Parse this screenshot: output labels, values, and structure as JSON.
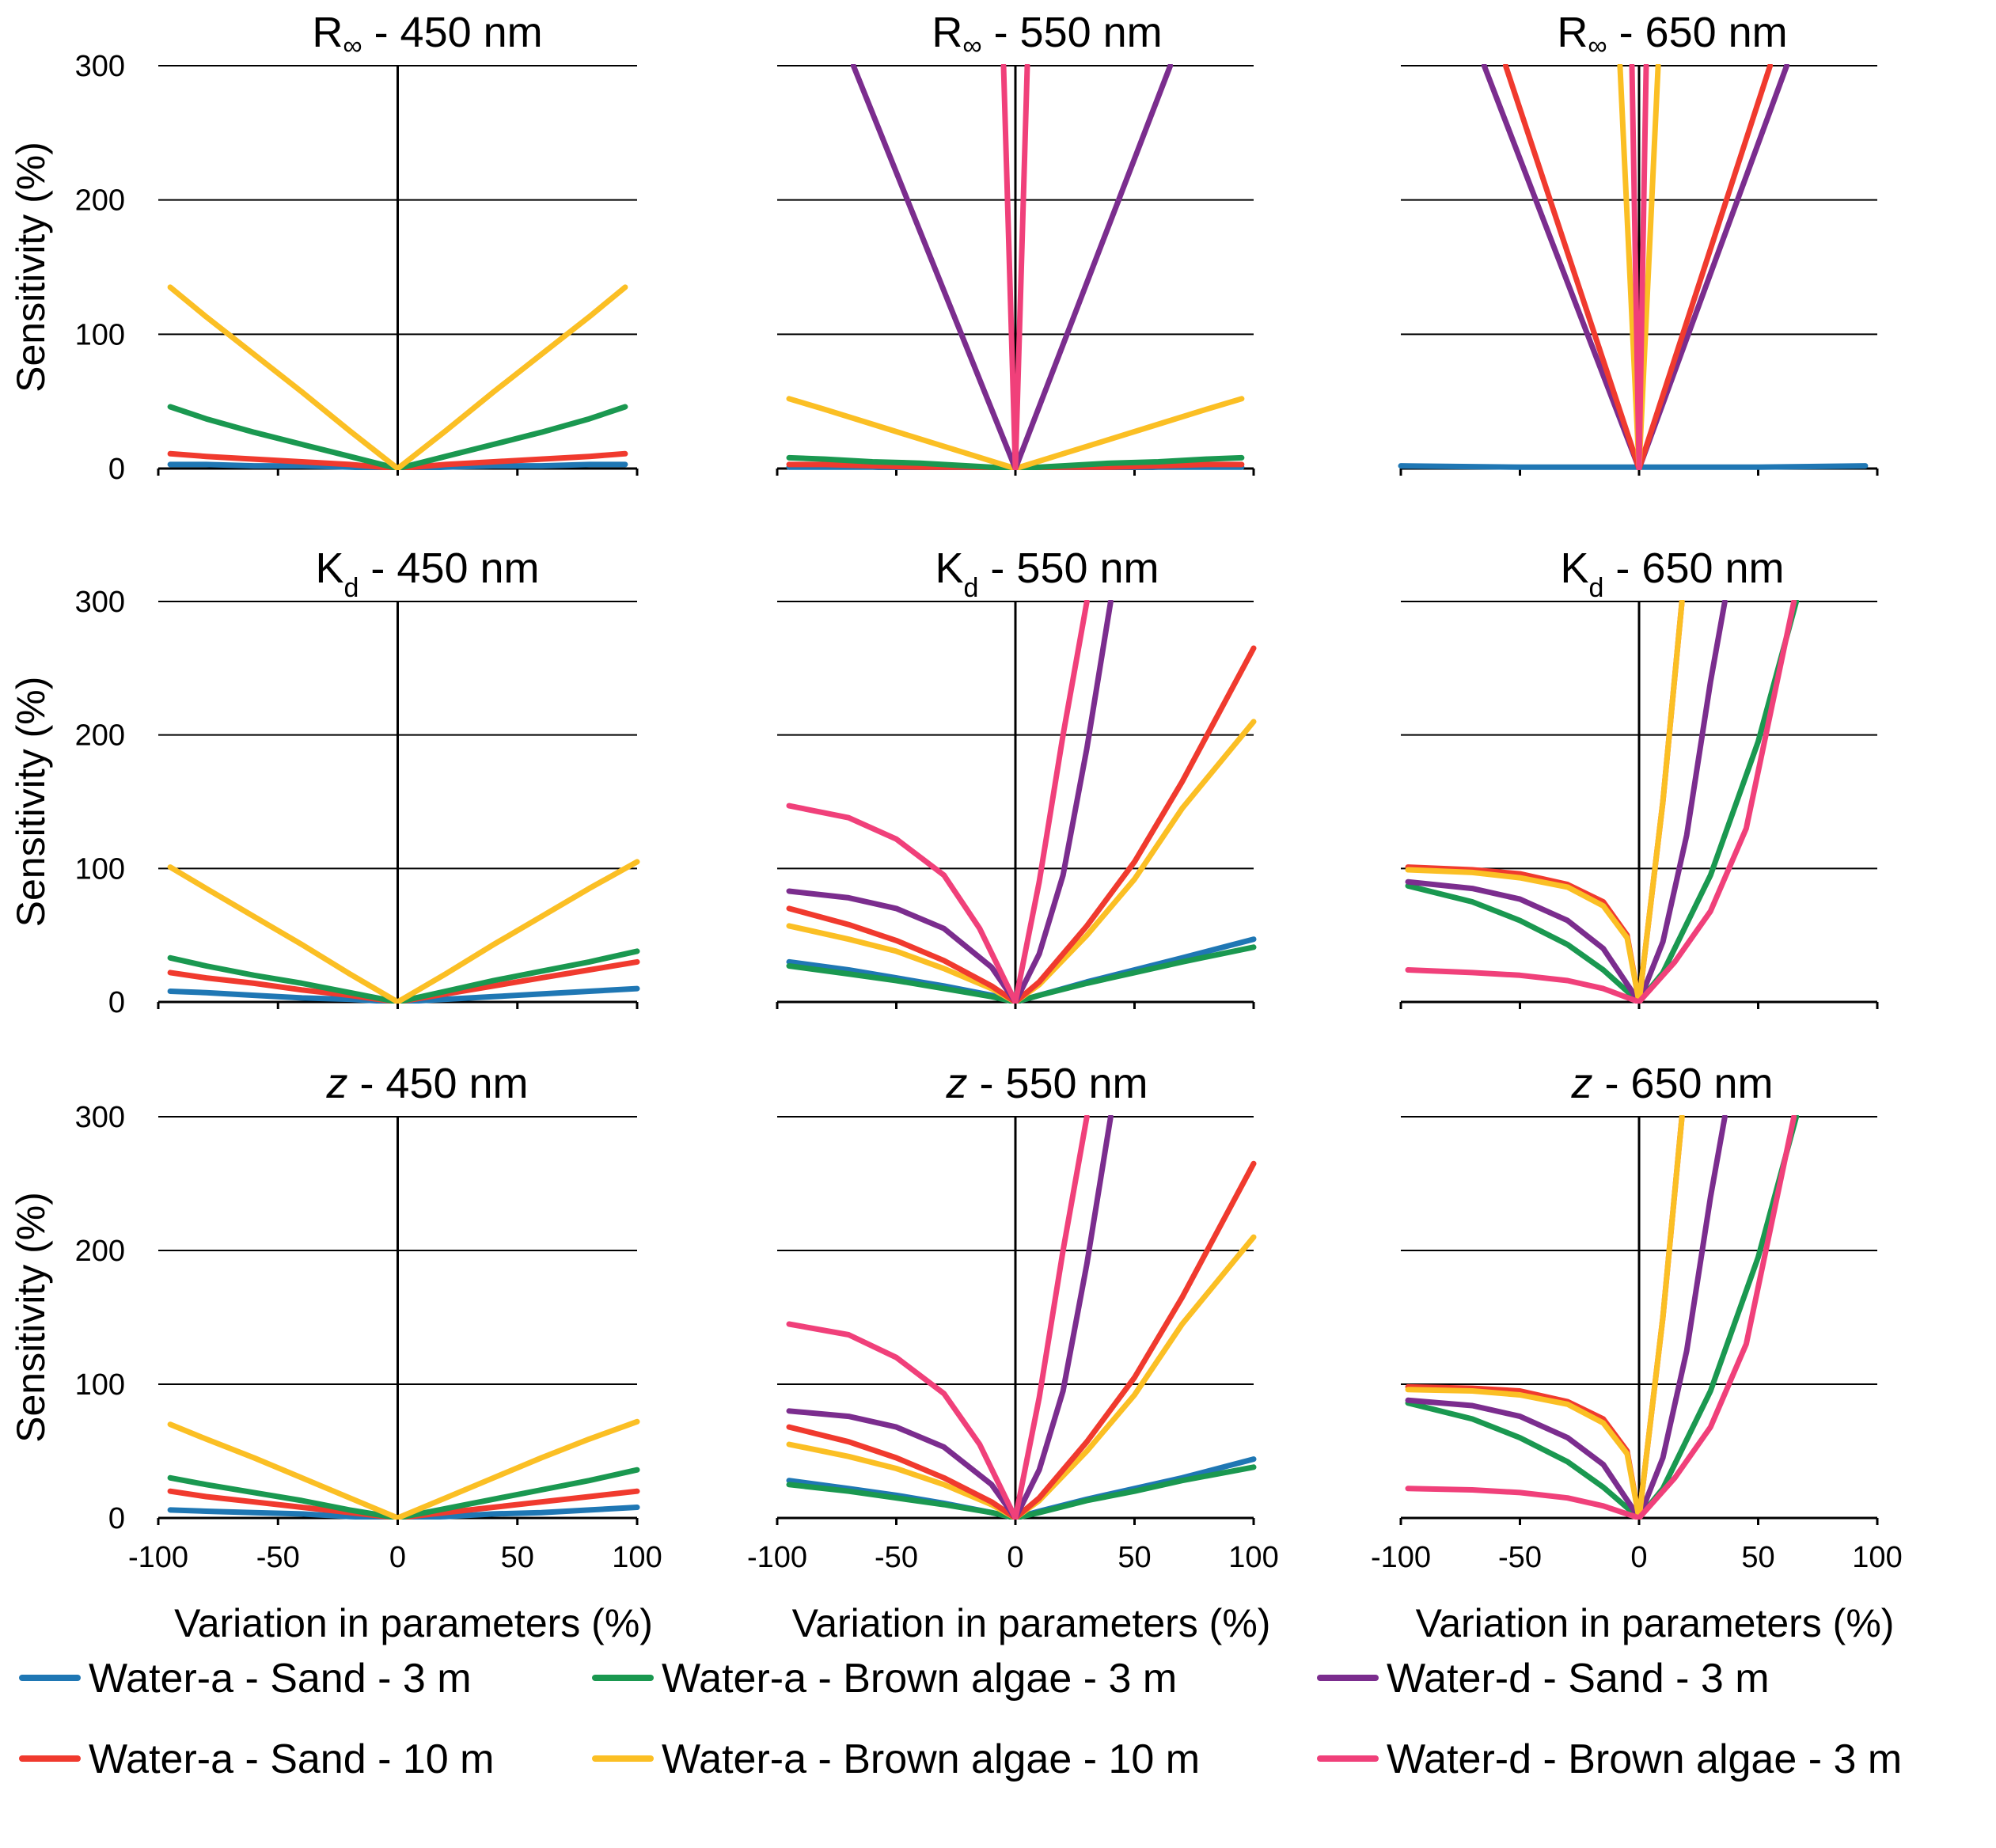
{
  "figure": {
    "x_axis_label": "Variation in parameters (%)",
    "y_axis_label": "Sensitivity (%)",
    "x_ticks": [
      "-100",
      "-50",
      "0",
      "50",
      "100"
    ],
    "y_ticks": [
      "0",
      "100",
      "200",
      "300"
    ]
  },
  "legend": [
    {
      "key": "wa_sand_3",
      "label": "Water-a - Sand - 3 m",
      "color": "#1f77b4"
    },
    {
      "key": "wa_brown_3",
      "label": "Water-a - Brown algae - 3 m",
      "color": "#1a9850"
    },
    {
      "key": "wd_sand_3",
      "label": "Water-d - Sand - 3 m",
      "color": "#7b2d8e"
    },
    {
      "key": "wa_sand_10",
      "label": "Water-a - Sand - 10 m",
      "color": "#f03a2e"
    },
    {
      "key": "wa_brown_10",
      "label": "Water-a - Brown algae - 10 m",
      "color": "#fbbf24"
    },
    {
      "key": "wd_brown_3",
      "label": "Water-d - Brown algae - 3 m",
      "color": "#f0407a"
    }
  ],
  "chart_data": [
    {
      "type": "line",
      "title_main": "R",
      "title_sub": "∞",
      "title_rest": " - 450 nm",
      "xlim": [
        -100,
        100
      ],
      "ylim": [
        0,
        300
      ],
      "x": [
        -95,
        -80,
        -60,
        -40,
        -20,
        0,
        20,
        40,
        60,
        80,
        95
      ],
      "series": [
        {
          "key": "wa_sand_3",
          "values": [
            3,
            3,
            2,
            2,
            1,
            0,
            1,
            2,
            2,
            3,
            3
          ]
        },
        {
          "key": "wa_sand_10",
          "values": [
            11,
            9,
            7,
            5,
            3,
            0,
            3,
            5,
            7,
            9,
            11
          ]
        },
        {
          "key": "wa_brown_3",
          "values": [
            46,
            37,
            27,
            18,
            9,
            0,
            9,
            18,
            27,
            37,
            46
          ]
        },
        {
          "key": "wa_brown_10",
          "values": [
            135,
            113,
            85,
            57,
            28,
            0,
            28,
            57,
            85,
            113,
            135
          ]
        }
      ]
    },
    {
      "type": "line",
      "title_main": "R",
      "title_sub": "∞",
      "title_rest": " - 550 nm",
      "xlim": [
        -100,
        100
      ],
      "ylim": [
        0,
        300
      ],
      "x": [
        -95,
        -80,
        -60,
        -40,
        -20,
        0,
        20,
        40,
        60,
        80,
        95
      ],
      "series": [
        {
          "key": "wa_sand_3",
          "values": [
            1,
            1,
            1,
            0,
            0,
            0,
            0,
            0,
            1,
            1,
            1
          ]
        },
        {
          "key": "wa_sand_10",
          "values": [
            3,
            3,
            2,
            1,
            1,
            0,
            1,
            1,
            2,
            3,
            3
          ]
        },
        {
          "key": "wa_brown_3",
          "values": [
            8,
            7,
            5,
            4,
            2,
            0,
            2,
            4,
            5,
            7,
            8
          ]
        },
        {
          "key": "wa_brown_10",
          "values": [
            52,
            44,
            33,
            22,
            11,
            0,
            11,
            22,
            33,
            44,
            52
          ]
        },
        {
          "key": "wd_sand_3",
          "x": [
            -68,
            0,
            65
          ],
          "values": [
            300,
            0,
            300
          ]
        },
        {
          "key": "wd_brown_3",
          "x": [
            -5,
            0,
            5
          ],
          "values": [
            300,
            0,
            300
          ]
        }
      ]
    },
    {
      "type": "line",
      "title_main": "R",
      "title_sub": "∞",
      "title_rest": " - 650 nm",
      "xlim": [
        -100,
        100
      ],
      "ylim": [
        0,
        300
      ],
      "x": [
        -100,
        -50,
        0,
        50,
        95
      ],
      "series": [
        {
          "key": "wa_sand_3",
          "values": [
            2,
            1,
            1,
            1,
            2
          ]
        },
        {
          "key": "wd_sand_3",
          "x": [
            -65,
            0,
            62
          ],
          "values": [
            300,
            0,
            300
          ]
        },
        {
          "key": "wa_sand_10",
          "x": [
            -56,
            0,
            55
          ],
          "values": [
            300,
            0,
            300
          ]
        },
        {
          "key": "wa_brown_10",
          "x": [
            -8,
            0,
            8
          ],
          "values": [
            300,
            0,
            300
          ]
        },
        {
          "key": "wd_brown_3",
          "x": [
            -3,
            0,
            3
          ],
          "values": [
            300,
            0,
            300
          ]
        }
      ]
    },
    {
      "type": "line",
      "title_main": "K",
      "title_sub": "d",
      "title_rest": " - 450 nm",
      "xlim": [
        -100,
        100
      ],
      "ylim": [
        0,
        300
      ],
      "x": [
        -95,
        -80,
        -60,
        -40,
        -20,
        0,
        20,
        40,
        60,
        80,
        100
      ],
      "series": [
        {
          "key": "wa_sand_3",
          "values": [
            8,
            7,
            5,
            3,
            2,
            0,
            2,
            4,
            6,
            8,
            10
          ]
        },
        {
          "key": "wa_sand_10",
          "values": [
            22,
            18,
            14,
            9,
            5,
            0,
            6,
            12,
            18,
            24,
            30
          ]
        },
        {
          "key": "wa_brown_3",
          "values": [
            33,
            27,
            20,
            14,
            7,
            0,
            8,
            16,
            23,
            30,
            38
          ]
        },
        {
          "key": "wa_brown_10",
          "values": [
            101,
            85,
            64,
            43,
            21,
            0,
            21,
            43,
            64,
            85,
            105
          ]
        }
      ]
    },
    {
      "type": "line",
      "title_main": "K",
      "title_sub": "d",
      "title_rest": " - 550 nm",
      "xlim": [
        -100,
        100
      ],
      "ylim": [
        0,
        300
      ],
      "series": [
        {
          "key": "wa_sand_3",
          "x": [
            -95,
            -70,
            -50,
            -30,
            -10,
            0,
            10,
            30,
            50,
            70,
            100
          ],
          "values": [
            30,
            24,
            18,
            12,
            5,
            0,
            5,
            15,
            24,
            33,
            47
          ]
        },
        {
          "key": "wa_brown_3",
          "x": [
            -95,
            -70,
            -50,
            -30,
            -10,
            0,
            10,
            30,
            50,
            70,
            100
          ],
          "values": [
            27,
            21,
            16,
            10,
            4,
            0,
            5,
            14,
            22,
            30,
            41
          ]
        },
        {
          "key": "wa_brown_10",
          "x": [
            -95,
            -70,
            -50,
            -30,
            -10,
            0,
            10,
            30,
            50,
            70,
            100
          ],
          "values": [
            57,
            47,
            38,
            25,
            10,
            0,
            13,
            50,
            92,
            145,
            210
          ]
        },
        {
          "key": "wa_sand_10",
          "x": [
            -95,
            -70,
            -50,
            -30,
            -10,
            0,
            10,
            30,
            50,
            70,
            100
          ],
          "values": [
            70,
            58,
            46,
            31,
            12,
            0,
            15,
            57,
            105,
            165,
            265
          ]
        },
        {
          "key": "wd_sand_3",
          "x": [
            -95,
            -70,
            -50,
            -30,
            -10,
            0,
            10,
            20,
            30,
            40
          ],
          "values": [
            83,
            78,
            70,
            55,
            26,
            0,
            36,
            95,
            190,
            300
          ]
        },
        {
          "key": "wd_brown_3",
          "x": [
            -95,
            -70,
            -50,
            -30,
            -15,
            0,
            10,
            20,
            30
          ],
          "values": [
            147,
            138,
            122,
            95,
            55,
            0,
            90,
            200,
            300
          ]
        }
      ]
    },
    {
      "type": "line",
      "title_main": "K",
      "title_sub": "d",
      "title_rest": " - 650 nm",
      "xlim": [
        -100,
        100
      ],
      "ylim": [
        0,
        300
      ],
      "series": [
        {
          "key": "wa_brown_3",
          "x": [
            -97,
            -70,
            -50,
            -30,
            -15,
            0,
            10,
            30,
            50,
            66
          ],
          "values": [
            87,
            75,
            61,
            43,
            24,
            0,
            22,
            95,
            195,
            300
          ]
        },
        {
          "key": "wd_sand_3",
          "x": [
            -97,
            -70,
            -50,
            -30,
            -15,
            0,
            10,
            20,
            30,
            36
          ],
          "values": [
            90,
            85,
            77,
            61,
            40,
            0,
            45,
            125,
            240,
            300
          ]
        },
        {
          "key": "wa_sand_10",
          "x": [
            -97,
            -70,
            -50,
            -30,
            -15,
            -5,
            0,
            10,
            18
          ],
          "values": [
            101,
            99,
            96,
            88,
            75,
            50,
            0,
            150,
            300
          ]
        },
        {
          "key": "wa_brown_10",
          "x": [
            -97,
            -70,
            -50,
            -30,
            -15,
            -5,
            0,
            10,
            18
          ],
          "values": [
            99,
            97,
            93,
            86,
            72,
            48,
            0,
            150,
            300
          ]
        },
        {
          "key": "wd_brown_3",
          "x": [
            -97,
            -70,
            -50,
            -30,
            -15,
            0,
            15,
            30,
            45,
            65
          ],
          "values": [
            24,
            22,
            20,
            16,
            10,
            0,
            30,
            68,
            130,
            300
          ]
        }
      ]
    },
    {
      "type": "line",
      "title_main": "z",
      "title_sub": "",
      "title_rest": " - 450 nm",
      "xlim": [
        -100,
        100
      ],
      "ylim": [
        0,
        300
      ],
      "x": [
        -95,
        -80,
        -60,
        -40,
        -20,
        0,
        20,
        40,
        60,
        80,
        100
      ],
      "series": [
        {
          "key": "wa_sand_3",
          "values": [
            6,
            5,
            4,
            3,
            1,
            0,
            1,
            3,
            4,
            6,
            8
          ]
        },
        {
          "key": "wa_sand_10",
          "values": [
            20,
            16,
            12,
            8,
            4,
            0,
            4,
            8,
            12,
            16,
            20
          ]
        },
        {
          "key": "wa_brown_3",
          "values": [
            30,
            25,
            19,
            13,
            6,
            0,
            7,
            14,
            21,
            28,
            36
          ]
        },
        {
          "key": "wa_brown_10",
          "values": [
            70,
            59,
            45,
            30,
            15,
            0,
            15,
            30,
            45,
            59,
            72
          ]
        }
      ]
    },
    {
      "type": "line",
      "title_main": "z",
      "title_sub": "",
      "title_rest": " - 550 nm",
      "xlim": [
        -100,
        100
      ],
      "ylim": [
        0,
        300
      ],
      "series": [
        {
          "key": "wa_sand_3",
          "x": [
            -95,
            -70,
            -50,
            -30,
            -10,
            0,
            10,
            30,
            50,
            70,
            100
          ],
          "values": [
            28,
            22,
            17,
            11,
            4,
            0,
            5,
            14,
            22,
            30,
            44
          ]
        },
        {
          "key": "wa_brown_3",
          "x": [
            -95,
            -70,
            -50,
            -30,
            -10,
            0,
            10,
            30,
            50,
            70,
            100
          ],
          "values": [
            25,
            20,
            15,
            10,
            4,
            0,
            4,
            13,
            20,
            28,
            38
          ]
        },
        {
          "key": "wa_brown_10",
          "x": [
            -95,
            -70,
            -50,
            -30,
            -10,
            0,
            10,
            30,
            50,
            70,
            100
          ],
          "values": [
            55,
            46,
            37,
            25,
            10,
            0,
            13,
            50,
            92,
            145,
            210
          ]
        },
        {
          "key": "wa_sand_10",
          "x": [
            -95,
            -70,
            -50,
            -30,
            -10,
            0,
            10,
            30,
            50,
            70,
            100
          ],
          "values": [
            68,
            57,
            45,
            30,
            12,
            0,
            15,
            57,
            105,
            165,
            265
          ]
        },
        {
          "key": "wd_sand_3",
          "x": [
            -95,
            -70,
            -50,
            -30,
            -10,
            0,
            10,
            20,
            30,
            40
          ],
          "values": [
            80,
            76,
            68,
            53,
            25,
            0,
            36,
            95,
            190,
            300
          ]
        },
        {
          "key": "wd_brown_3",
          "x": [
            -95,
            -70,
            -50,
            -30,
            -15,
            0,
            10,
            20,
            30
          ],
          "values": [
            145,
            137,
            120,
            93,
            55,
            0,
            90,
            200,
            300
          ]
        }
      ]
    },
    {
      "type": "line",
      "title_main": "z",
      "title_sub": "",
      "title_rest": " - 650 nm",
      "xlim": [
        -100,
        100
      ],
      "ylim": [
        0,
        300
      ],
      "series": [
        {
          "key": "wa_brown_3",
          "x": [
            -97,
            -70,
            -50,
            -30,
            -15,
            0,
            10,
            30,
            50,
            66
          ],
          "values": [
            86,
            74,
            60,
            42,
            23,
            0,
            22,
            95,
            195,
            300
          ]
        },
        {
          "key": "wd_sand_3",
          "x": [
            -97,
            -70,
            -50,
            -30,
            -15,
            0,
            10,
            20,
            30,
            36
          ],
          "values": [
            88,
            84,
            76,
            60,
            40,
            0,
            45,
            125,
            240,
            300
          ]
        },
        {
          "key": "wa_sand_10",
          "x": [
            -97,
            -70,
            -50,
            -30,
            -15,
            -5,
            0,
            10,
            18
          ],
          "values": [
            98,
            97,
            95,
            87,
            74,
            50,
            0,
            150,
            300
          ]
        },
        {
          "key": "wa_brown_10",
          "x": [
            -97,
            -70,
            -50,
            -30,
            -15,
            -5,
            0,
            10,
            18
          ],
          "values": [
            96,
            95,
            92,
            85,
            71,
            48,
            0,
            150,
            300
          ]
        },
        {
          "key": "wd_brown_3",
          "x": [
            -97,
            -70,
            -50,
            -30,
            -15,
            0,
            15,
            30,
            45,
            65
          ],
          "values": [
            22,
            21,
            19,
            15,
            9,
            0,
            30,
            68,
            130,
            300
          ]
        }
      ]
    }
  ]
}
